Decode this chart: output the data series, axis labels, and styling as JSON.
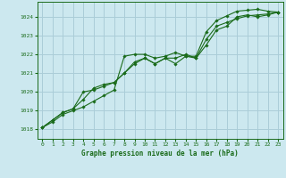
{
  "title": "Graphe pression niveau de la mer (hPa)",
  "bg_color": "#cce8ef",
  "grid_color": "#aacdd8",
  "line_color": "#1a6b1a",
  "marker_color": "#1a6b1a",
  "xlim": [
    -0.5,
    23.5
  ],
  "ylim": [
    1017.5,
    1024.8
  ],
  "yticks": [
    1018,
    1019,
    1020,
    1021,
    1022,
    1023,
    1024
  ],
  "xticks": [
    0,
    1,
    2,
    3,
    4,
    5,
    6,
    7,
    8,
    9,
    10,
    11,
    12,
    13,
    14,
    15,
    16,
    17,
    18,
    19,
    20,
    21,
    22,
    23
  ],
  "series": [
    [
      1018.1,
      1018.4,
      1018.8,
      1019.0,
      1019.2,
      1019.5,
      1019.8,
      1020.1,
      1021.9,
      1022.0,
      1022.0,
      1021.8,
      1021.9,
      1022.1,
      1021.9,
      1021.9,
      1023.2,
      1023.8,
      1024.05,
      1024.3,
      1024.35,
      1024.4,
      1024.3,
      1024.25
    ],
    [
      1018.1,
      1018.5,
      1018.9,
      1019.1,
      1020.0,
      1020.1,
      1020.3,
      1020.5,
      1021.0,
      1021.5,
      1021.8,
      1021.5,
      1021.8,
      1021.5,
      1021.9,
      1021.8,
      1022.5,
      1023.3,
      1023.5,
      1024.0,
      1024.1,
      1024.0,
      1024.1,
      1024.25
    ],
    [
      1018.1,
      1018.5,
      1018.9,
      1019.1,
      1019.6,
      1020.2,
      1020.4,
      1020.5,
      1021.0,
      1021.6,
      1021.8,
      1021.5,
      1021.8,
      1021.8,
      1022.0,
      1021.8,
      1022.8,
      1023.5,
      1023.7,
      1023.9,
      1024.05,
      1024.1,
      1024.15,
      1024.25
    ]
  ]
}
